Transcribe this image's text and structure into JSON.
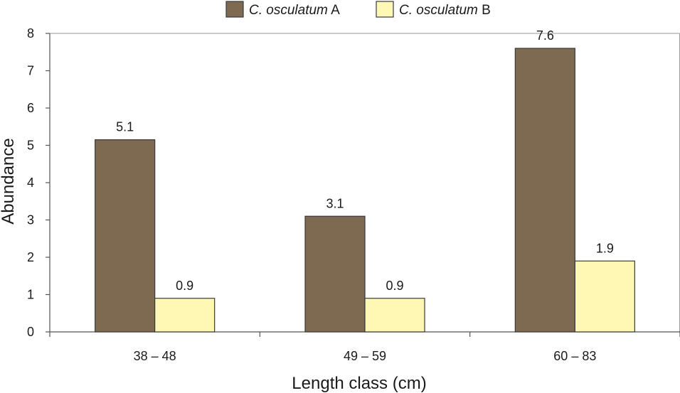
{
  "chart_data": {
    "type": "bar",
    "title": "",
    "xlabel": "Length class (cm)",
    "ylabel": "Abundance",
    "categories": [
      "38 – 48",
      "49 – 59",
      "60 – 83"
    ],
    "series": [
      {
        "name_italic": "C. osculatum",
        "name_suffix": " A",
        "color": "#7d6a51",
        "values": [
          5.15,
          3.1,
          7.6
        ],
        "labels": [
          "5.1",
          "3.1",
          "7.6"
        ]
      },
      {
        "name_italic": "C. osculatum",
        "name_suffix": " B",
        "color": "#fff8b5",
        "values": [
          0.9,
          0.9,
          1.9
        ],
        "labels": [
          "0.9",
          "0.9",
          "1.9"
        ]
      }
    ],
    "ylim": [
      0,
      8
    ],
    "yticks": [
      0,
      1,
      2,
      3,
      4,
      5,
      6,
      7,
      8
    ],
    "grid": false,
    "legend": "top-center",
    "edge_color": "#3a3a3a"
  }
}
